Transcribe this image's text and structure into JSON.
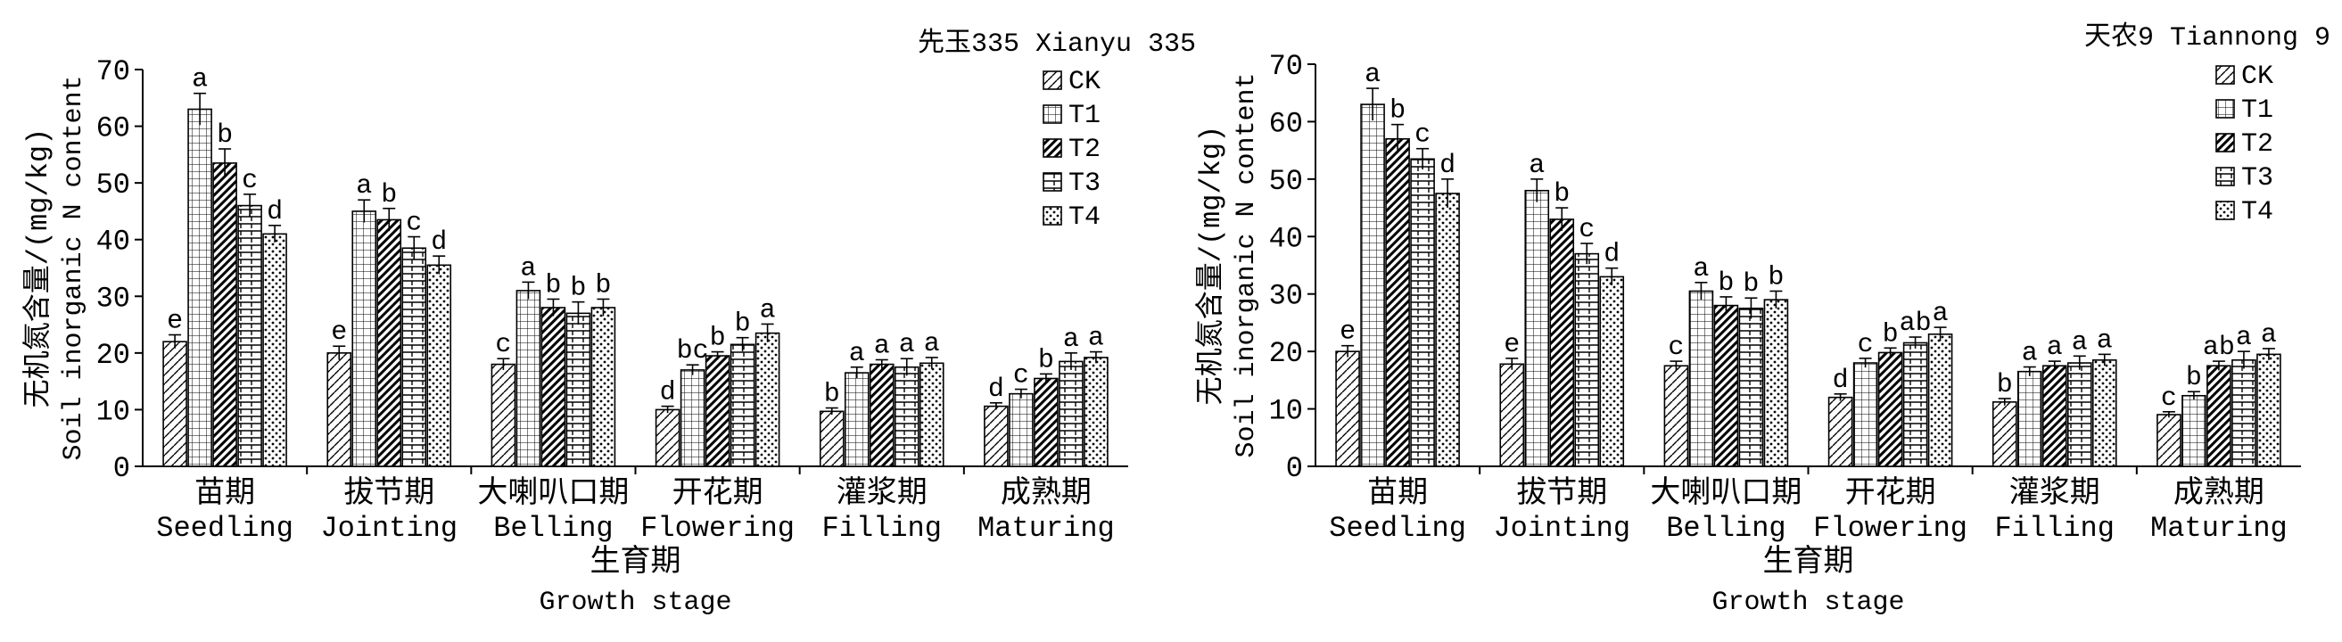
{
  "chart_data": [
    {
      "type": "bar",
      "title": "先玉335 Xianyu 335",
      "ylabel_cn": "无机氮含量/(mg/kg)",
      "ylabel_en": "Soil inorganic N content",
      "xlabel_cn": "生育期",
      "xlabel_en": "Growth stage",
      "ylim": [
        0,
        70
      ],
      "yticks": [
        0,
        10,
        20,
        30,
        40,
        50,
        60,
        70
      ],
      "categories_cn": [
        "苗期",
        "拔节期",
        "大喇叭口期",
        "开花期",
        "灌浆期",
        "成熟期"
      ],
      "categories_en": [
        "Seedling",
        "Jointing",
        "Belling",
        "Flowering",
        "Filling",
        "Maturing"
      ],
      "legend_position": "top-right",
      "series": [
        {
          "name": "CK",
          "values": [
            22,
            20,
            18,
            10,
            9.7,
            10.6
          ],
          "errors": [
            1.2,
            1.2,
            1.0,
            0.6,
            0.6,
            0.6
          ],
          "letters": [
            "e",
            "e",
            "c",
            "d",
            "b",
            "d"
          ]
        },
        {
          "name": "T1",
          "values": [
            63,
            45,
            31,
            17,
            16.5,
            12.8
          ],
          "errors": [
            2.8,
            2.0,
            1.5,
            0.9,
            1.0,
            0.8
          ],
          "letters": [
            "a",
            "a",
            "a",
            "bc",
            "a",
            "c"
          ]
        },
        {
          "name": "T2",
          "values": [
            53.5,
            43.5,
            28,
            19.5,
            18,
            15.5
          ],
          "errors": [
            2.5,
            2.0,
            1.5,
            0.7,
            0.8,
            0.8
          ],
          "letters": [
            "b",
            "b",
            "b",
            "b",
            "a",
            "b"
          ]
        },
        {
          "name": "T3",
          "values": [
            46,
            38.5,
            27,
            21.5,
            17.5,
            18.5
          ],
          "errors": [
            2.0,
            2.0,
            2.0,
            1.2,
            1.5,
            1.5
          ],
          "letters": [
            "c",
            "c",
            "b",
            "b",
            "a",
            "a"
          ]
        },
        {
          "name": "T4",
          "values": [
            41,
            35.5,
            28,
            23.5,
            18.2,
            19.2
          ],
          "errors": [
            1.5,
            1.6,
            1.5,
            1.6,
            1.0,
            1.0
          ],
          "letters": [
            "d",
            "d",
            "b",
            "a",
            "a",
            "a"
          ]
        }
      ]
    },
    {
      "type": "bar",
      "title": "天农9 Tiannong 9",
      "ylabel_cn": "无机氮含量/(mg/kg)",
      "ylabel_en": "Soil inorganic N content",
      "xlabel_cn": "生育期",
      "xlabel_en": "Growth stage",
      "ylim": [
        0,
        70
      ],
      "yticks": [
        0,
        10,
        20,
        30,
        40,
        50,
        60,
        70
      ],
      "categories_cn": [
        "苗期",
        "拔节期",
        "大喇叭口期",
        "开花期",
        "灌浆期",
        "成熟期"
      ],
      "categories_en": [
        "Seedling",
        "Jointing",
        "Belling",
        "Flowering",
        "Filling",
        "Maturing"
      ],
      "legend_position": "top-right",
      "series": [
        {
          "name": "CK",
          "values": [
            20,
            17.8,
            17.5,
            12,
            11.2,
            9
          ],
          "errors": [
            1.0,
            1.0,
            0.8,
            0.6,
            0.6,
            0.5
          ],
          "letters": [
            "e",
            "e",
            "c",
            "d",
            "b",
            "c"
          ]
        },
        {
          "name": "T1",
          "values": [
            63,
            48,
            30.5,
            18,
            16.5,
            12.3
          ],
          "errors": [
            2.8,
            2.0,
            1.5,
            0.8,
            0.8,
            0.7
          ],
          "letters": [
            "a",
            "a",
            "a",
            "c",
            "a",
            "b"
          ]
        },
        {
          "name": "T2",
          "values": [
            57,
            43,
            28,
            19.8,
            17.5,
            17.5
          ],
          "errors": [
            2.5,
            2.0,
            1.5,
            0.8,
            0.8,
            0.8
          ],
          "letters": [
            "b",
            "b",
            "b",
            "b",
            "a",
            "ab"
          ]
        },
        {
          "name": "T3",
          "values": [
            53.5,
            37,
            27.5,
            21.5,
            18,
            18.5
          ],
          "errors": [
            1.8,
            1.8,
            1.8,
            1.0,
            1.2,
            1.5
          ],
          "letters": [
            "c",
            "c",
            "b",
            "ab",
            "a",
            "a"
          ]
        },
        {
          "name": "T4",
          "values": [
            47.5,
            33,
            29,
            23,
            18.5,
            19.5
          ],
          "errors": [
            2.5,
            1.5,
            1.5,
            1.2,
            1.0,
            1.0
          ],
          "letters": [
            "d",
            "d",
            "b",
            "a",
            "a",
            "a"
          ]
        }
      ]
    }
  ]
}
